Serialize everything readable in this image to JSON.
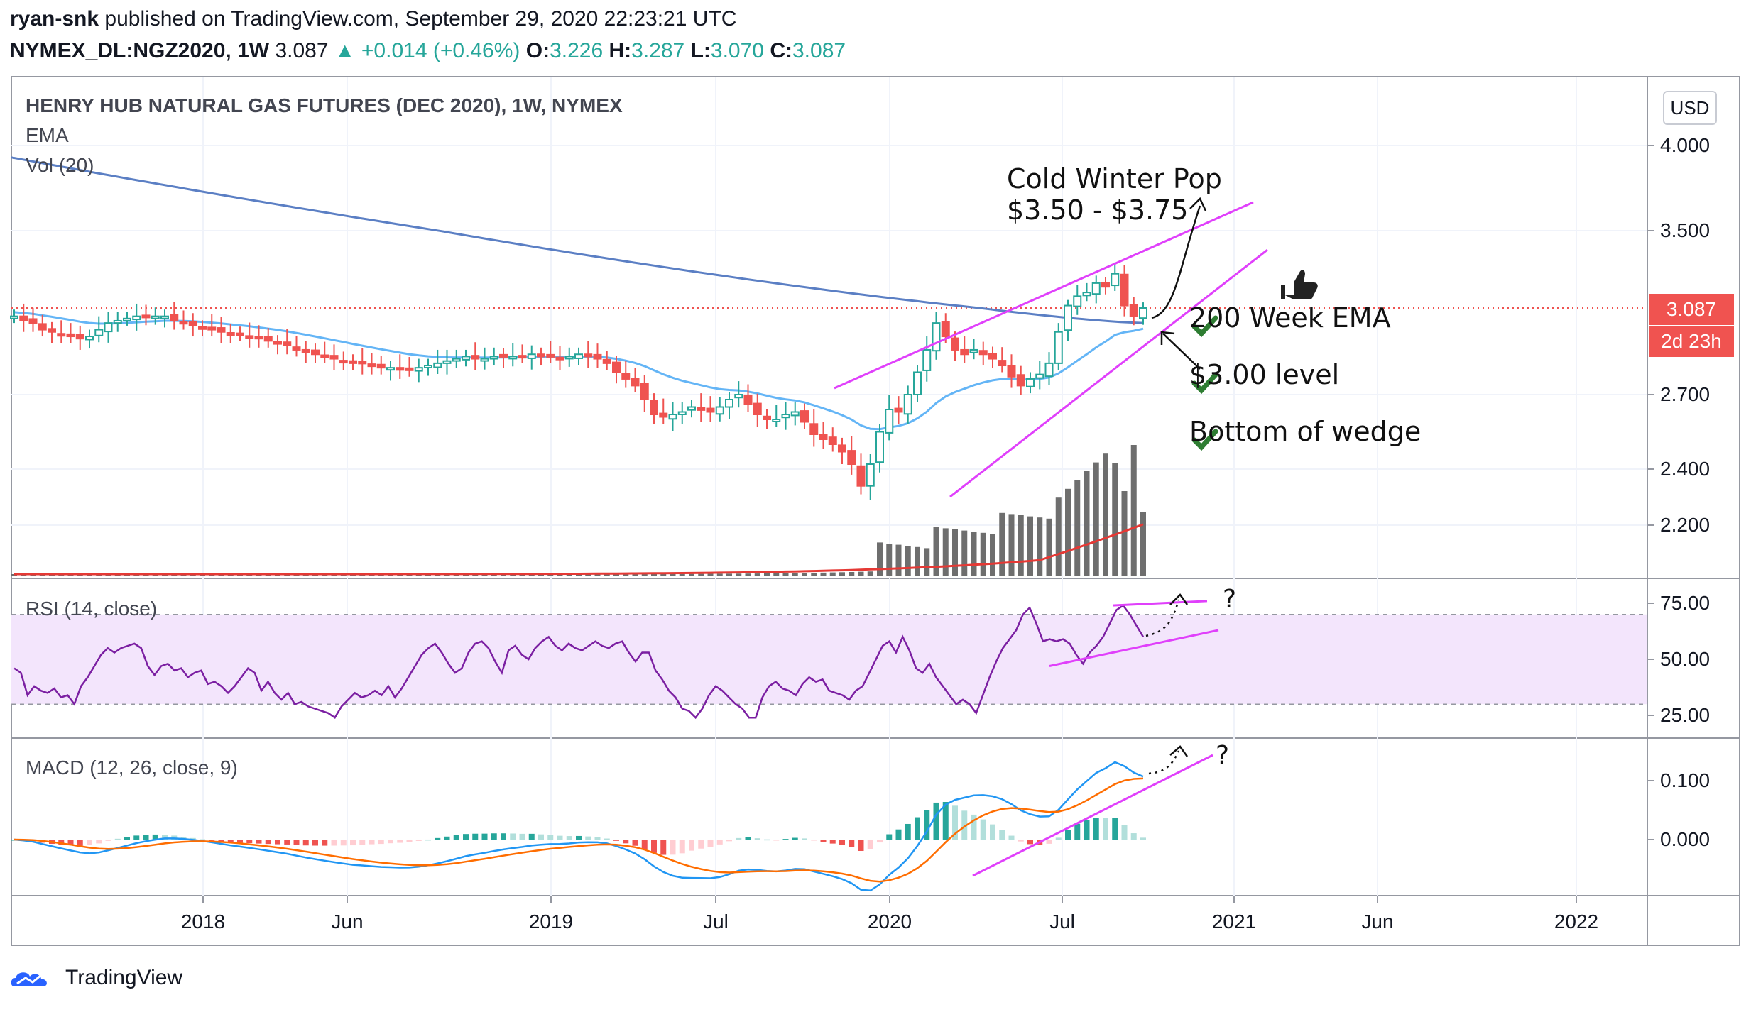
{
  "header": {
    "user": "ryan-snk",
    "published": "published on TradingView.com, September 29, 2020 22:23:21 UTC",
    "symbol": "NYMEX_DL:NGZ2020, 1W",
    "last": "3.087",
    "change": "+0.014 (+0.46%)",
    "open_label": "O:",
    "open": "3.226",
    "high_label": "H:",
    "high": "3.287",
    "low_label": "L:",
    "low": "3.070",
    "close_label": "C:",
    "close": "3.087"
  },
  "panes": {
    "main_title": "HENRY HUB NATURAL GAS FUTURES (DEC 2020), 1W, NYMEX",
    "ema_label": "EMA",
    "vol_label": "Vol (20)",
    "rsi_label": "RSI (14, close)",
    "macd_label": "MACD (12, 26, close, 9)"
  },
  "currency": "USD",
  "price_tag": "3.087",
  "countdown_tag": "2d 23h",
  "annotations": {
    "cold_winter_1": "Cold Winter Pop",
    "cold_winter_2": "$3.50 - $3.75",
    "check1": "200 Week EMA",
    "check2": "$3.00 level",
    "check3": "Bottom of wedge",
    "rsi_question": "?",
    "macd_question": "?",
    "check_icon": "check-mark-icon",
    "thumbs_icon": "thumbs-up-icon"
  },
  "colors": {
    "up": "#26a69a",
    "down": "#ef5350",
    "wedge": "#e040fb",
    "ema200": "#5b7fc4",
    "ema50": "#64b5f6",
    "rsi": "#7b1fa2",
    "rsi_band": "#f3e5fc",
    "macd": "#2196f3",
    "signal": "#ff6d00",
    "volume": "#6e6e6e",
    "vol_ma": "#e53935",
    "check": "#2e7d32"
  },
  "footer": {
    "brand": "TradingView"
  },
  "chart_data": {
    "type": "candlestick",
    "title": "HENRY HUB NATURAL GAS FUTURES (DEC 2020), 1W, NYMEX",
    "x_ticks": [
      "2018",
      "Jun",
      "2019",
      "Jul",
      "2020",
      "Jul",
      "2021",
      "Jun",
      "2022"
    ],
    "price_axis": {
      "ticks": [
        4.0,
        3.5,
        2.7,
        2.4,
        2.2
      ],
      "tick_labels": [
        "4.000",
        "3.500",
        "2.700",
        "2.400",
        "2.200"
      ],
      "last_price": 3.087
    },
    "price_closes": [
      3.05,
      3.03,
      3.02,
      2.99,
      2.98,
      2.97,
      2.96,
      2.95,
      2.96,
      2.99,
      3.02,
      3.03,
      3.04,
      3.05,
      3.05,
      3.05,
      3.05,
      3.03,
      3.02,
      3.01,
      3.0,
      2.99,
      2.98,
      2.97,
      2.97,
      2.96,
      2.95,
      2.94,
      2.93,
      2.92,
      2.9,
      2.89,
      2.88,
      2.87,
      2.86,
      2.85,
      2.84,
      2.84,
      2.83,
      2.82,
      2.82,
      2.81,
      2.81,
      2.82,
      2.83,
      2.84,
      2.85,
      2.86,
      2.87,
      2.86,
      2.86,
      2.87,
      2.87,
      2.87,
      2.87,
      2.88,
      2.87,
      2.87,
      2.86,
      2.87,
      2.88,
      2.87,
      2.86,
      2.84,
      2.8,
      2.77,
      2.74,
      2.68,
      2.62,
      2.61,
      2.62,
      2.63,
      2.65,
      2.64,
      2.63,
      2.65,
      2.68,
      2.7,
      2.66,
      2.62,
      2.6,
      2.6,
      2.62,
      2.63,
      2.59,
      2.54,
      2.52,
      2.5,
      2.47,
      2.42,
      2.34,
      2.42,
      2.55,
      2.64,
      2.63,
      2.7,
      2.8,
      2.9,
      3.02,
      2.96,
      2.9,
      2.88,
      2.9,
      2.88,
      2.86,
      2.83,
      2.78,
      2.74,
      2.77,
      2.79,
      2.84,
      2.98,
      3.1,
      3.15,
      3.17,
      3.22,
      3.2,
      3.27,
      3.1,
      3.05,
      3.087
    ],
    "ema200": {
      "start": 3.93,
      "end": 3.02
    },
    "rsi": {
      "ticks": [
        75,
        50,
        25
      ],
      "tick_labels": [
        "75.00",
        "50.00",
        "25.00"
      ],
      "band": [
        30,
        70
      ],
      "values": [
        46,
        44,
        34,
        38,
        36,
        35,
        37,
        33,
        34,
        30,
        38,
        42,
        47,
        52,
        55,
        53,
        55,
        56,
        57,
        55,
        47,
        43,
        47,
        48,
        45,
        46,
        42,
        44,
        45,
        39,
        40,
        38,
        35,
        38,
        42,
        46,
        44,
        36,
        40,
        35,
        32,
        35,
        30,
        31,
        29,
        28,
        27,
        26,
        24,
        29,
        32,
        35,
        33,
        34,
        36,
        34,
        38,
        33,
        37,
        42,
        47,
        52,
        55,
        57,
        53,
        48,
        44,
        46,
        53,
        57,
        58,
        55,
        49,
        44,
        54,
        56,
        52,
        50,
        55,
        58,
        60,
        56,
        54,
        57,
        55,
        54,
        56,
        58,
        56,
        55,
        57,
        58,
        53,
        49,
        53,
        53,
        45,
        41,
        36,
        33,
        28,
        27,
        24,
        28,
        34,
        38,
        36,
        33,
        30,
        28,
        24,
        24,
        33,
        38,
        40,
        37,
        36,
        34,
        39,
        42,
        40,
        41,
        36,
        35,
        34,
        32,
        36,
        38,
        44,
        50,
        56,
        58,
        53,
        60,
        54,
        46,
        44,
        48,
        42,
        38,
        34,
        30,
        32,
        30,
        26,
        34,
        42,
        49,
        55,
        59,
        63,
        70,
        73,
        66,
        58,
        59,
        58,
        59,
        57,
        52,
        48,
        53,
        56,
        60,
        66,
        72,
        74,
        70,
        65,
        60
      ],
      "wedge_top": [
        [
          0.76,
          74
        ],
        [
          0.94,
          76
        ]
      ],
      "wedge_bottom": [
        [
          0.76,
          47
        ],
        [
          0.94,
          63
        ]
      ]
    },
    "macd": {
      "ticks": [
        0.1,
        0.0
      ],
      "tick_labels": [
        "0.100",
        "0.000"
      ]
    }
  }
}
